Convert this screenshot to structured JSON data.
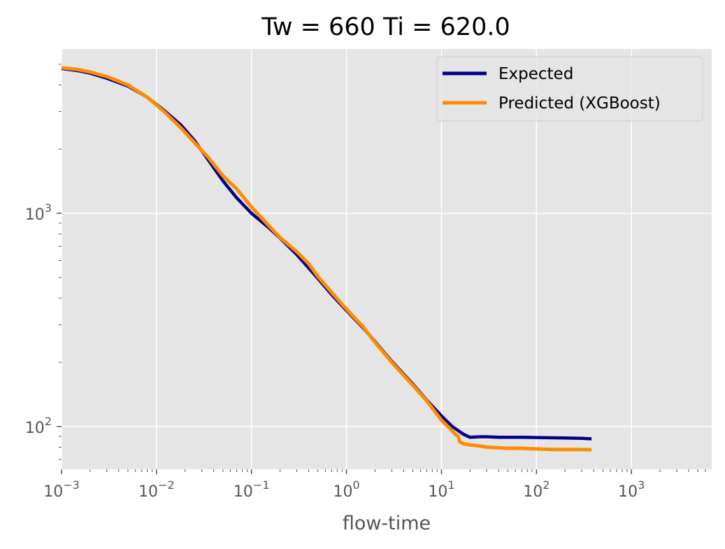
{
  "chart_data": {
    "type": "line",
    "title": "Tw = 660 Ti = 620.0",
    "xlabel": "flow-time",
    "ylabel": "",
    "xscale": "log",
    "yscale": "log",
    "xlim": [
      0.001,
      7000
    ],
    "ylim": [
      63,
      5900
    ],
    "grid": true,
    "legend_position": "top-right",
    "x_ticks": [
      {
        "value": 0.001,
        "base": "10",
        "exp": "−3"
      },
      {
        "value": 0.01,
        "base": "10",
        "exp": "−2"
      },
      {
        "value": 0.1,
        "base": "10",
        "exp": "−1"
      },
      {
        "value": 1,
        "base": "10",
        "exp": "0"
      },
      {
        "value": 10,
        "base": "10",
        "exp": "1"
      },
      {
        "value": 100,
        "base": "10",
        "exp": "2"
      },
      {
        "value": 1000,
        "base": "10",
        "exp": "3"
      }
    ],
    "y_ticks": [
      {
        "value": 100,
        "base": "10",
        "exp": "2"
      },
      {
        "value": 1000,
        "base": "10",
        "exp": "3"
      }
    ],
    "series": [
      {
        "name": "Expected",
        "color": "#00008b",
        "x": [
          0.001,
          0.0015,
          0.002,
          0.003,
          0.005,
          0.008,
          0.012,
          0.018,
          0.025,
          0.035,
          0.05,
          0.07,
          0.1,
          0.15,
          0.2,
          0.3,
          0.5,
          0.7,
          1,
          1.5,
          2,
          3,
          5,
          7,
          10,
          13,
          17,
          20,
          25,
          30,
          40,
          50,
          70,
          100,
          150,
          200,
          300,
          380
        ],
        "y": [
          4780,
          4660,
          4540,
          4300,
          3950,
          3500,
          3040,
          2600,
          2200,
          1780,
          1420,
          1180,
          1000,
          860,
          765,
          640,
          495,
          415,
          350,
          290,
          250,
          202,
          158,
          133,
          112,
          100,
          92,
          89,
          89.5,
          89.5,
          89,
          89,
          89,
          88.8,
          88.5,
          88.3,
          88,
          87.5
        ]
      },
      {
        "name": "Predicted (XGBoost)",
        "color": "#ff8c00",
        "x": [
          0.001,
          0.0015,
          0.002,
          0.003,
          0.005,
          0.008,
          0.012,
          0.018,
          0.025,
          0.035,
          0.05,
          0.07,
          0.1,
          0.15,
          0.2,
          0.3,
          0.4,
          0.5,
          0.7,
          1,
          1.5,
          2,
          3,
          5,
          7,
          10,
          12,
          14,
          15,
          15.5,
          17,
          20,
          25,
          30,
          40,
          50,
          70,
          100,
          150,
          200,
          300,
          380
        ],
        "y": [
          4820,
          4720,
          4600,
          4380,
          4000,
          3500,
          3000,
          2520,
          2150,
          1830,
          1500,
          1300,
          1070,
          880,
          770,
          660,
          580,
          505,
          425,
          355,
          293,
          248,
          200,
          156,
          132,
          107,
          99,
          92,
          90,
          85,
          83,
          82,
          81,
          80,
          79.5,
          79,
          79,
          78.5,
          78,
          78,
          78,
          77.8
        ]
      }
    ]
  }
}
